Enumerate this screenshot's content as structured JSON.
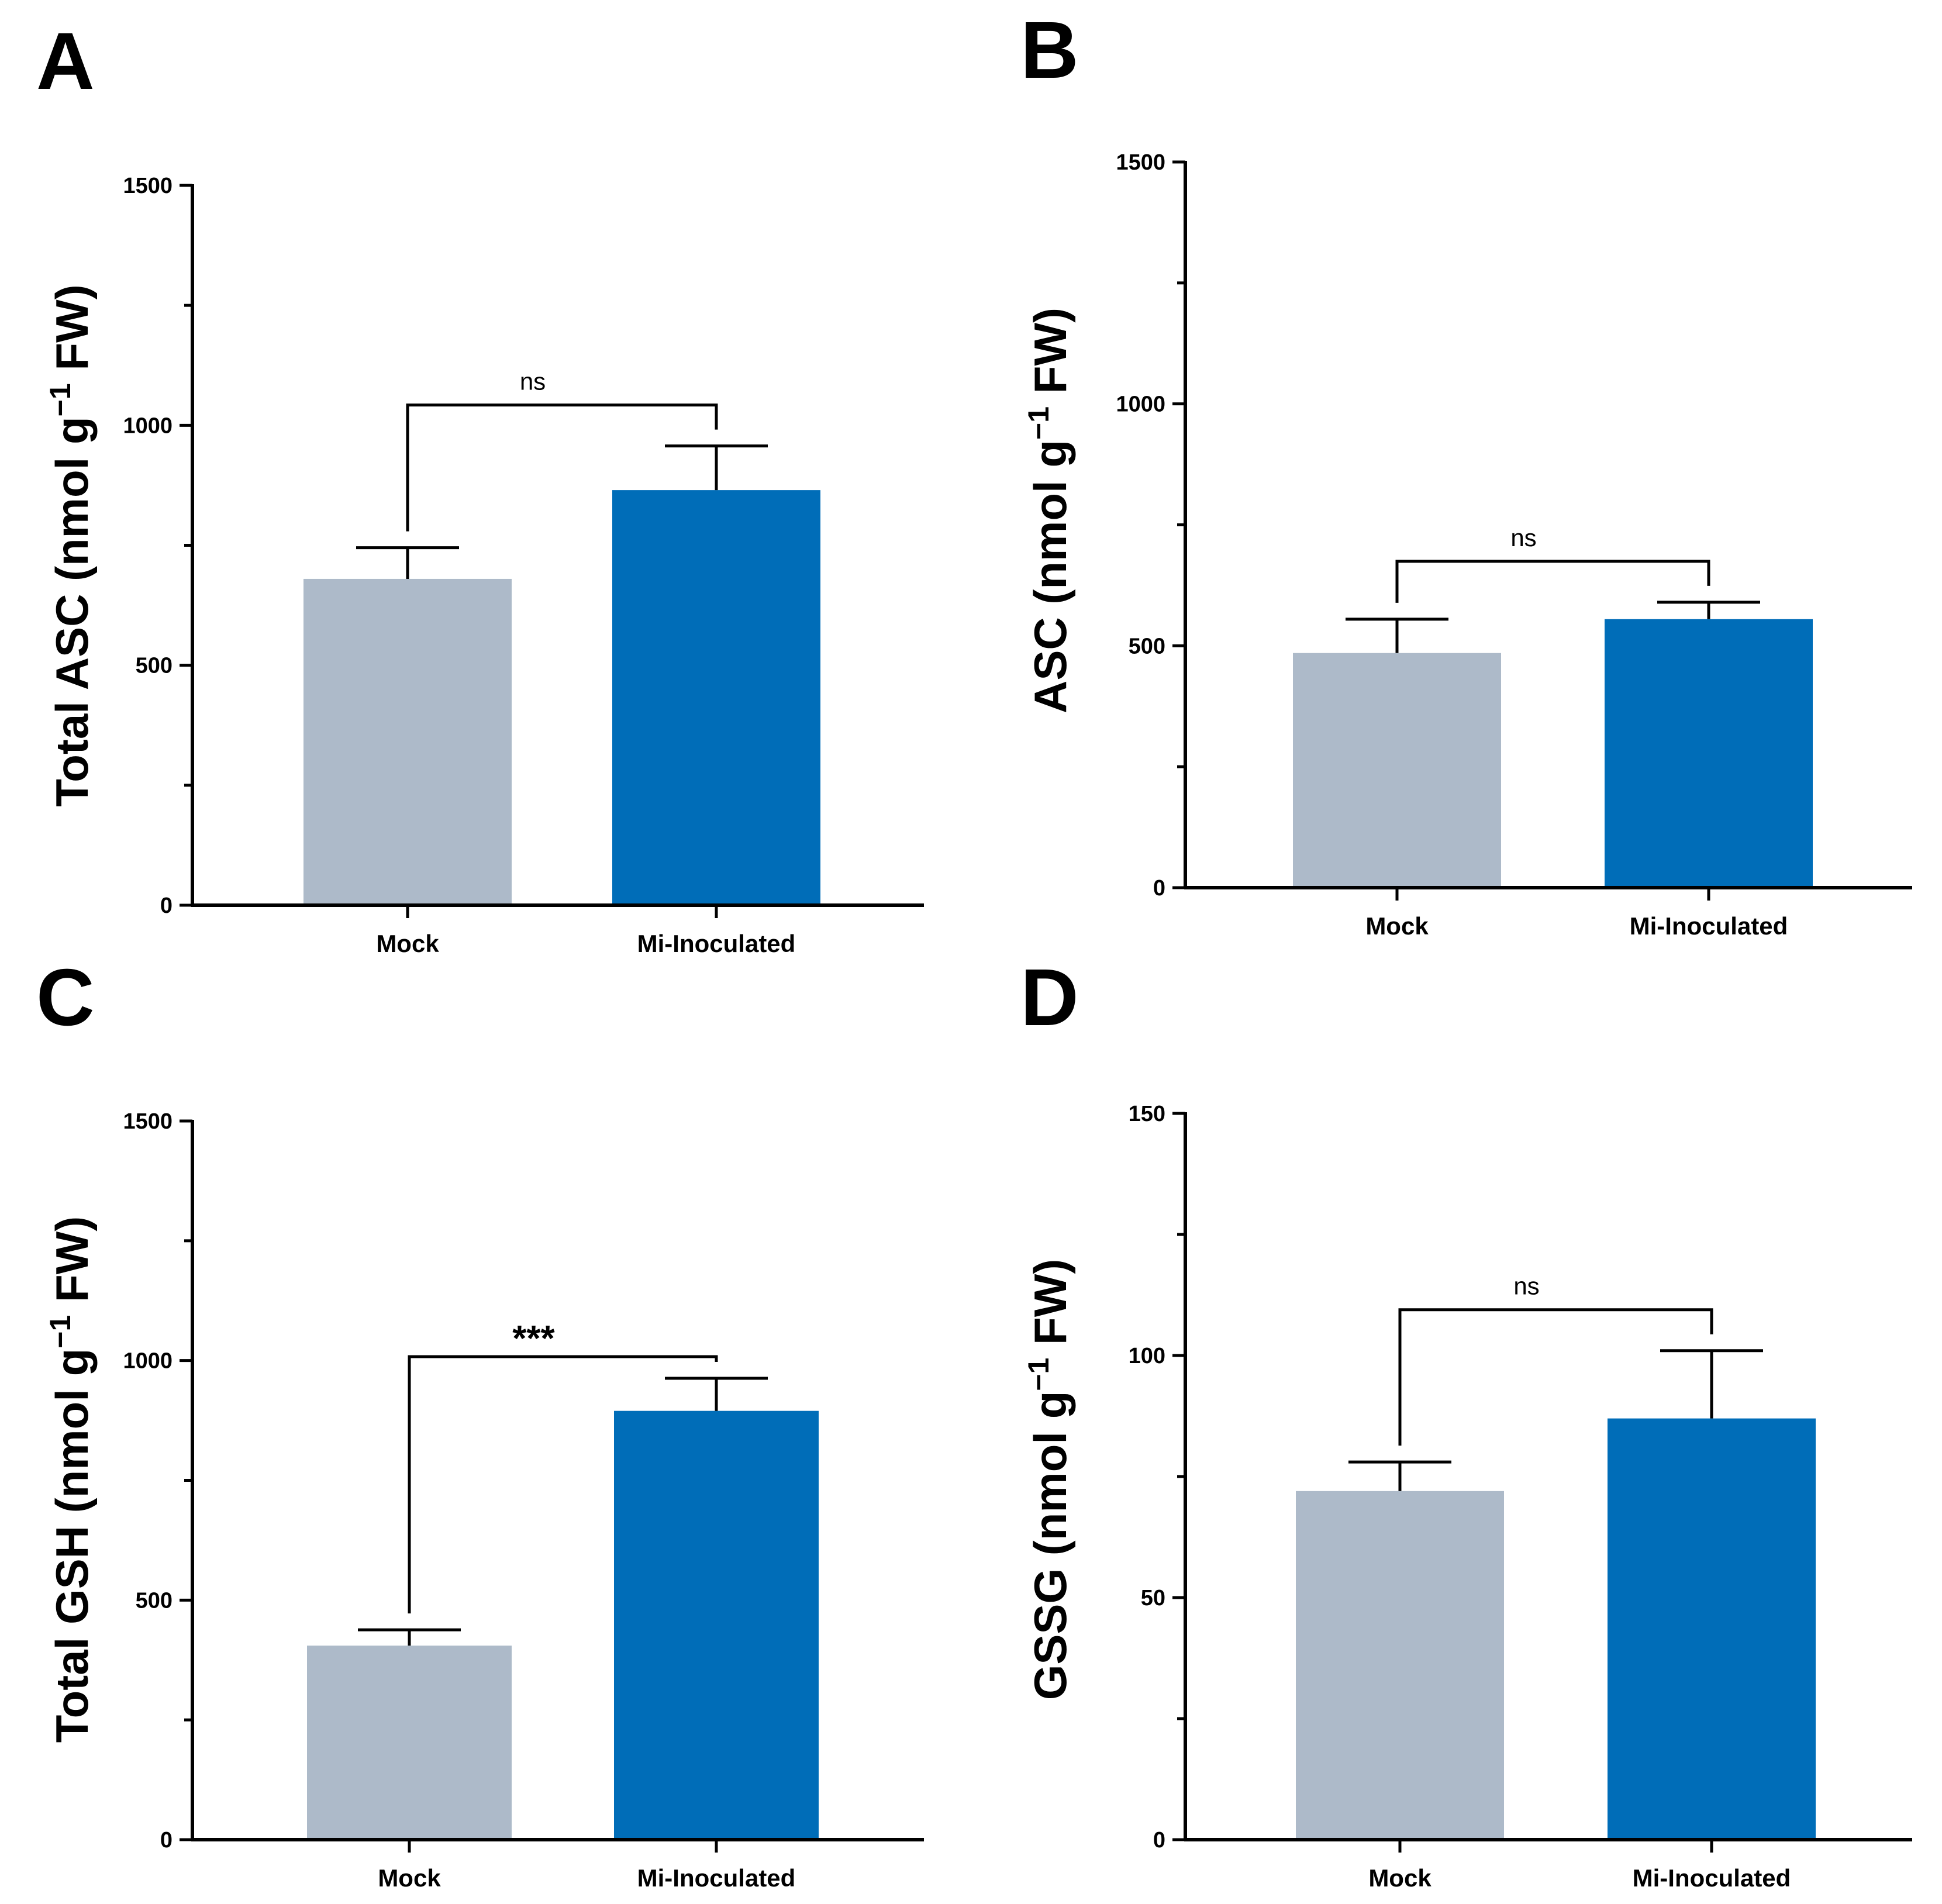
{
  "chart_data": [
    {
      "panel": "A",
      "type": "bar",
      "categories": [
        "Mock",
        "Mi-Inoculated"
      ],
      "values": [
        680,
        865
      ],
      "errors": [
        65,
        92
      ],
      "colors": [
        "#adbac9",
        "#006db8"
      ],
      "ylim": [
        0,
        1500
      ],
      "yticks": [
        0,
        500,
        1000,
        1500
      ],
      "ytick_labels": [
        "0",
        "500",
        "1000",
        "1500"
      ],
      "ylabel_main": "Total ASC  (nmol g",
      "ylabel_sup": "−1",
      "ylabel_end": " FW)",
      "xlabel": "",
      "significance": "ns"
    },
    {
      "panel": "B",
      "type": "bar",
      "categories": [
        "Mock",
        "Mi-Inoculated"
      ],
      "values": [
        485,
        555
      ],
      "errors": [
        70,
        35
      ],
      "colors": [
        "#adbac9",
        "#006db8"
      ],
      "ylim": [
        0,
        1500
      ],
      "yticks": [
        0,
        500,
        1000,
        1500
      ],
      "ytick_labels": [
        "0",
        "500",
        "1000",
        "1500"
      ],
      "ylabel_main": "ASC  (nmol g",
      "ylabel_sup": "−1",
      "ylabel_end": " FW)",
      "xlabel": "",
      "significance": "ns"
    },
    {
      "panel": "C",
      "type": "bar",
      "categories": [
        "Mock",
        "Mi-Inoculated"
      ],
      "values": [
        405,
        895
      ],
      "errors": [
        33,
        68
      ],
      "colors": [
        "#adbac9",
        "#006db8"
      ],
      "ylim": [
        0,
        1500
      ],
      "yticks": [
        0,
        500,
        1000,
        1500
      ],
      "ytick_labels": [
        "0",
        "500",
        "1000",
        "1500"
      ],
      "ylabel_main": "Total GSH  (nmol g",
      "ylabel_sup": "−1",
      "ylabel_end": " FW)",
      "xlabel": "",
      "significance": "***"
    },
    {
      "panel": "D",
      "type": "bar",
      "categories": [
        "Mock",
        "Mi-Inoculated"
      ],
      "values": [
        72,
        87
      ],
      "errors": [
        6,
        14
      ],
      "colors": [
        "#adbac9",
        "#006db8"
      ],
      "ylim": [
        0,
        150
      ],
      "yticks": [
        0,
        50,
        100,
        150
      ],
      "ytick_labels": [
        "0",
        "50",
        "100",
        "150"
      ],
      "ylabel_main": "GSSG (nmol g",
      "ylabel_sup": "−1",
      "ylabel_end": " FW)",
      "xlabel": "",
      "significance": "ns"
    }
  ]
}
